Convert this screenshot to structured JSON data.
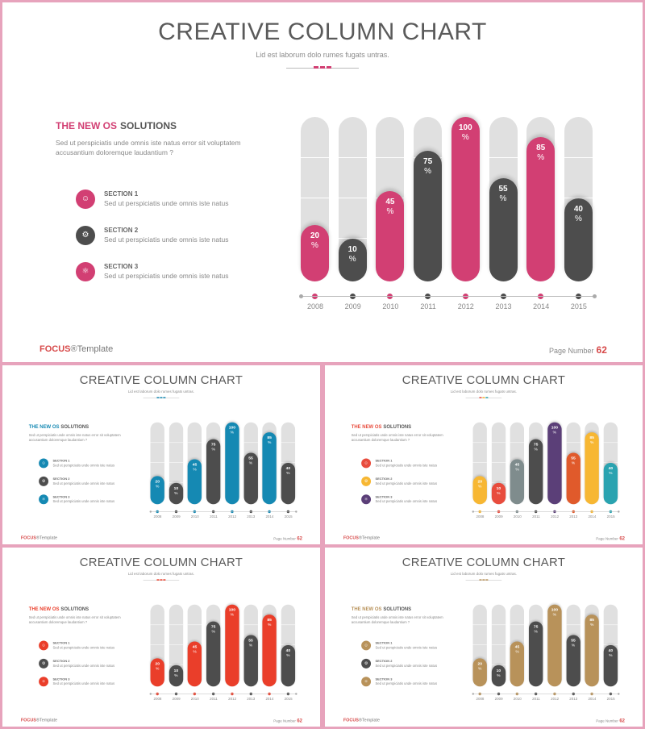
{
  "slide": {
    "title": "CREATIVE COLUMN CHART",
    "subtitle": "Lid est laborum dolo rumes fugats untras.",
    "heading_accent": "THE NEW OS",
    "heading_rest": "SOLUTIONS",
    "description": "Sed ut perspiciatis  unde omnis iste natus error  sit voluptatem accusantium  doloremque  laudantium  ?",
    "sections": [
      {
        "title": "SECTION 1",
        "desc": "Sed ut perspiciatis  unde omnis  iste natus",
        "icon": "person-icon",
        "glyph": "☺"
      },
      {
        "title": "SECTION 2",
        "desc": "Sed ut perspiciatis  unde omnis  iste natus",
        "icon": "gear-icon",
        "glyph": "⚙"
      },
      {
        "title": "SECTION 3",
        "desc": "Sed ut perspiciatis  unde omnis  iste natus",
        "icon": "network-icon",
        "glyph": "⚛"
      }
    ],
    "brand_bold": "FOCUS",
    "brand_rest": "®Template",
    "page_label": "Page  Number",
    "page_number": "62"
  },
  "chart_data": {
    "type": "bar",
    "categories": [
      "2008",
      "2009",
      "2010",
      "2011",
      "2012",
      "2013",
      "2014",
      "2015"
    ],
    "values": [
      20,
      10,
      45,
      75,
      100,
      55,
      85,
      40
    ],
    "value_suffix": "%",
    "ylim": [
      0,
      100
    ]
  },
  "themes": [
    {
      "id": "main",
      "accent": "#d23f73",
      "dark": "#4d4d4d",
      "bar_colors": [
        "#d23f73",
        "#4d4d4d",
        "#d23f73",
        "#4d4d4d",
        "#d23f73",
        "#4d4d4d",
        "#d23f73",
        "#4d4d4d"
      ],
      "section_colors": [
        "#d23f73",
        "#4d4d4d",
        "#d23f73"
      ],
      "deco": [
        "#d23f73",
        "#d23f73",
        "#d23f73"
      ]
    },
    {
      "id": "s1",
      "accent": "#1589b3",
      "dark": "#4d4d4d",
      "bar_colors": [
        "#1589b3",
        "#4d4d4d",
        "#1589b3",
        "#4d4d4d",
        "#1589b3",
        "#4d4d4d",
        "#1589b3",
        "#4d4d4d"
      ],
      "section_colors": [
        "#1589b3",
        "#4d4d4d",
        "#1589b3"
      ],
      "deco": [
        "#1589b3",
        "#1589b3",
        "#1589b3"
      ]
    },
    {
      "id": "s2",
      "accent": "#e84c3d",
      "dark": "#4d4d4d",
      "bar_colors": [
        "#f7b733",
        "#e84c3d",
        "#7f8c8d",
        "#4d4d4d",
        "#5b3f78",
        "#e05a2b",
        "#f7b733",
        "#2aa3b0"
      ],
      "section_colors": [
        "#e84c3d",
        "#f7b733",
        "#5b3f78"
      ],
      "deco": [
        "#e84c3d",
        "#f7b733",
        "#2aa3b0"
      ]
    },
    {
      "id": "s3",
      "accent": "#ea3e2a",
      "dark": "#4d4d4d",
      "bar_colors": [
        "#ea3e2a",
        "#4d4d4d",
        "#ea3e2a",
        "#4d4d4d",
        "#ea3e2a",
        "#4d4d4d",
        "#ea3e2a",
        "#4d4d4d"
      ],
      "section_colors": [
        "#ea3e2a",
        "#4d4d4d",
        "#ea3e2a"
      ],
      "deco": [
        "#ea3e2a",
        "#ea3e2a",
        "#ea3e2a"
      ]
    },
    {
      "id": "s4",
      "accent": "#b8925a",
      "dark": "#4d4d4d",
      "bar_colors": [
        "#b8925a",
        "#4d4d4d",
        "#b8925a",
        "#4d4d4d",
        "#b8925a",
        "#4d4d4d",
        "#b8925a",
        "#4d4d4d"
      ],
      "section_colors": [
        "#b8925a",
        "#4d4d4d",
        "#b8925a"
      ],
      "deco": [
        "#b8925a",
        "#b8925a",
        "#b8925a"
      ]
    }
  ]
}
